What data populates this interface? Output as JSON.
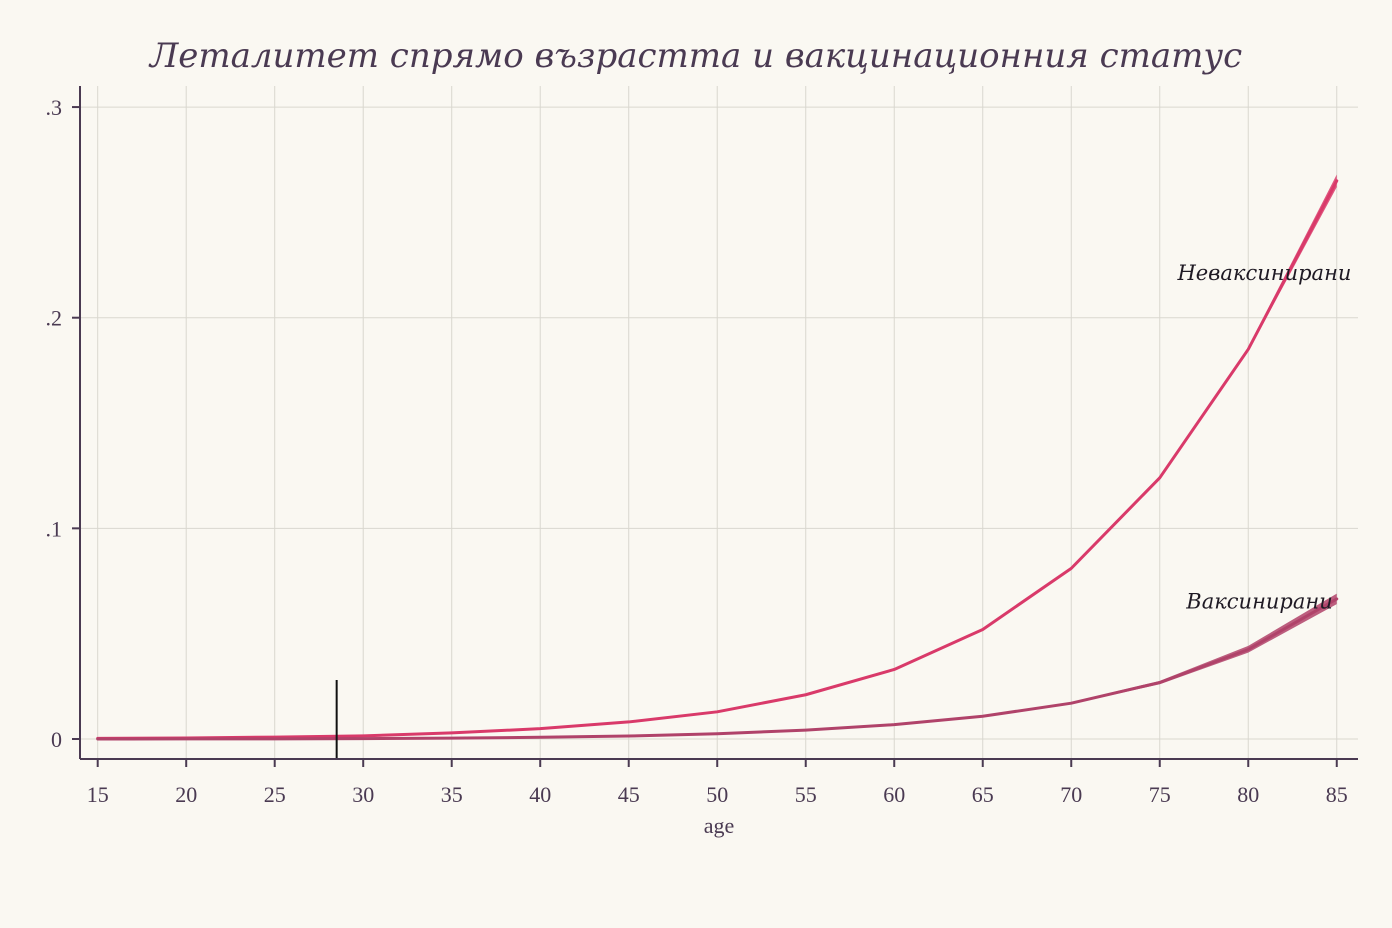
{
  "chart_data": {
    "type": "line",
    "title": "Леталитет спрямо възрастта и вакцинационния статус",
    "xlabel": "age",
    "ylabel": "",
    "x": [
      15,
      20,
      25,
      30,
      35,
      40,
      45,
      50,
      55,
      60,
      65,
      70,
      75,
      80,
      85
    ],
    "xlim": [
      14,
      86.2
    ],
    "ylim": [
      -0.0095,
      0.31
    ],
    "x_ticks": [
      15,
      20,
      25,
      30,
      35,
      40,
      45,
      50,
      55,
      60,
      65,
      70,
      75,
      80,
      85
    ],
    "x_tick_labels": [
      "15",
      "20",
      "25",
      "30",
      "35",
      "40",
      "45",
      "50",
      "55",
      "60",
      "65",
      "70",
      "75",
      "80",
      "85"
    ],
    "y_ticks": [
      0,
      0.1,
      0.2,
      0.3
    ],
    "y_tick_labels": [
      "0",
      ".1",
      ".2",
      ".3"
    ],
    "grid": true,
    "series": [
      {
        "name": "Неваксинирани",
        "color": "#d93a6a",
        "values": [
          0.0003,
          0.0005,
          0.0009,
          0.0015,
          0.0029,
          0.0049,
          0.0081,
          0.0129,
          0.021,
          0.033,
          0.052,
          0.081,
          0.124,
          0.185,
          0.265
        ],
        "upper": [
          0.0003,
          0.0005,
          0.0009,
          0.0015,
          0.0029,
          0.0049,
          0.0081,
          0.013,
          0.0212,
          0.0332,
          0.0523,
          0.0815,
          0.1245,
          0.186,
          0.268
        ],
        "lower": [
          0.0003,
          0.0005,
          0.0009,
          0.0015,
          0.0029,
          0.0049,
          0.0081,
          0.0128,
          0.0208,
          0.0328,
          0.0517,
          0.0805,
          0.1235,
          0.184,
          0.262
        ]
      },
      {
        "name": "Ваксинирани",
        "color": "#b0436a",
        "values": [
          1e-05,
          3e-05,
          7e-05,
          0.0002,
          0.0004,
          0.0008,
          0.0014,
          0.0025,
          0.0042,
          0.0068,
          0.0108,
          0.017,
          0.0268,
          0.0425,
          0.0665
        ],
        "upper": [
          1e-05,
          3e-05,
          7e-05,
          0.0002,
          0.0004,
          0.0008,
          0.0014,
          0.0026,
          0.0044,
          0.007,
          0.011,
          0.0174,
          0.0276,
          0.0442,
          0.069
        ],
        "lower": [
          1e-05,
          3e-05,
          7e-05,
          0.0002,
          0.0004,
          0.0008,
          0.0014,
          0.0024,
          0.004,
          0.0066,
          0.0106,
          0.0166,
          0.026,
          0.041,
          0.064
        ]
      }
    ],
    "annotations": [
      {
        "text": "Неваксинирани",
        "x": 76,
        "y": 0.218
      },
      {
        "text": "Ваксинирани",
        "x": 76.5,
        "y": 0.062
      }
    ],
    "reference_line": {
      "x": 28.5,
      "y_from": 0,
      "y_to": 0.028,
      "color": "#111111"
    }
  }
}
